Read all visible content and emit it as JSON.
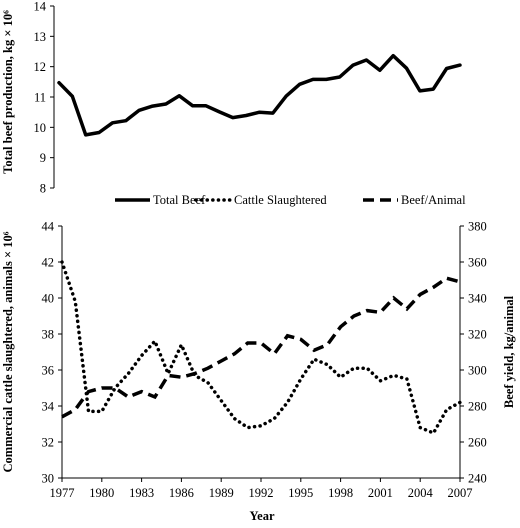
{
  "chart_data": [
    {
      "type": "line",
      "ylabel": "Total beef production, kg × 10⁶",
      "ylim": [
        8,
        14
      ],
      "yticks": [
        "8",
        "9",
        "10",
        "11",
        "12",
        "13",
        "14"
      ],
      "grid": false,
      "legend_position": "bottom",
      "series": [
        {
          "name": "Total Beef",
          "style": "solid",
          "color": "#000000",
          "x": [
            1977,
            1978,
            1979,
            1980,
            1981,
            1982,
            1983,
            1984,
            1985,
            1986,
            1987,
            1988,
            1989,
            1990,
            1991,
            1992,
            1993,
            1994,
            1995,
            1996,
            1997,
            1998,
            1999,
            2000,
            2001,
            2002,
            2003,
            2004,
            2005,
            2006,
            2007
          ],
          "values": [
            11.47,
            11.02,
            9.75,
            9.83,
            10.15,
            10.22,
            10.56,
            10.7,
            10.77,
            11.04,
            10.71,
            10.71,
            10.51,
            10.32,
            10.39,
            10.5,
            10.47,
            11.03,
            11.42,
            11.58,
            11.58,
            11.66,
            12.05,
            12.22,
            11.88,
            12.36,
            11.95,
            11.2,
            11.26,
            11.94,
            12.05
          ]
        }
      ]
    },
    {
      "type": "line",
      "xlabel": "Year",
      "xticks": [
        "1977",
        "1980",
        "1983",
        "1986",
        "1989",
        "1992",
        "1995",
        "1998",
        "2001",
        "2004",
        "2007"
      ],
      "xlim": [
        1977,
        2007
      ],
      "ylabel": "Commercial cattle slaughtered, animals × 10⁶",
      "ylim": [
        30,
        44
      ],
      "yticks": [
        "30",
        "32",
        "34",
        "36",
        "38",
        "40",
        "42",
        "44"
      ],
      "y2label": "Beef yield, kg/animal",
      "y2lim": [
        240,
        380
      ],
      "y2ticks": [
        "240",
        "260",
        "280",
        "300",
        "320",
        "340",
        "360",
        "380"
      ],
      "grid": false,
      "series": [
        {
          "name": "Cattle Slaughtered",
          "axis": "left",
          "style": "dotted",
          "color": "#000000",
          "x": [
            1977,
            1978,
            1979,
            1980,
            1981,
            1982,
            1983,
            1984,
            1985,
            1986,
            1987,
            1988,
            1989,
            1990,
            1991,
            1992,
            1993,
            1994,
            1995,
            1996,
            1997,
            1998,
            1999,
            2000,
            2001,
            2002,
            2003,
            2004,
            2005,
            2006,
            2007
          ],
          "values": [
            42,
            39.8,
            33.7,
            33.7,
            35,
            35.8,
            36.8,
            37.6,
            35.8,
            37.4,
            35.7,
            35.3,
            34.3,
            33.3,
            32.8,
            32.9,
            33.3,
            34.2,
            35.5,
            36.6,
            36.3,
            35.6,
            36.1,
            36.1,
            35.4,
            35.7,
            35.5,
            32.8,
            32.5,
            33.8,
            34.2
          ]
        },
        {
          "name": "Beef/Animal",
          "axis": "right",
          "style": "dashed",
          "color": "#000000",
          "x": [
            1977,
            1978,
            1979,
            1980,
            1981,
            1982,
            1983,
            1984,
            1985,
            1986,
            1987,
            1988,
            1989,
            1990,
            1991,
            1992,
            1993,
            1994,
            1995,
            1996,
            1997,
            1998,
            1999,
            2000,
            2001,
            2002,
            2003,
            2004,
            2005,
            2006,
            2007
          ],
          "values": [
            274,
            278,
            288,
            290,
            290,
            285,
            288,
            285,
            297,
            296,
            298,
            301,
            305,
            309,
            315,
            315,
            309,
            319,
            317,
            311,
            314,
            324,
            330,
            333,
            332,
            340,
            334,
            342,
            346,
            351,
            349
          ]
        }
      ]
    }
  ]
}
